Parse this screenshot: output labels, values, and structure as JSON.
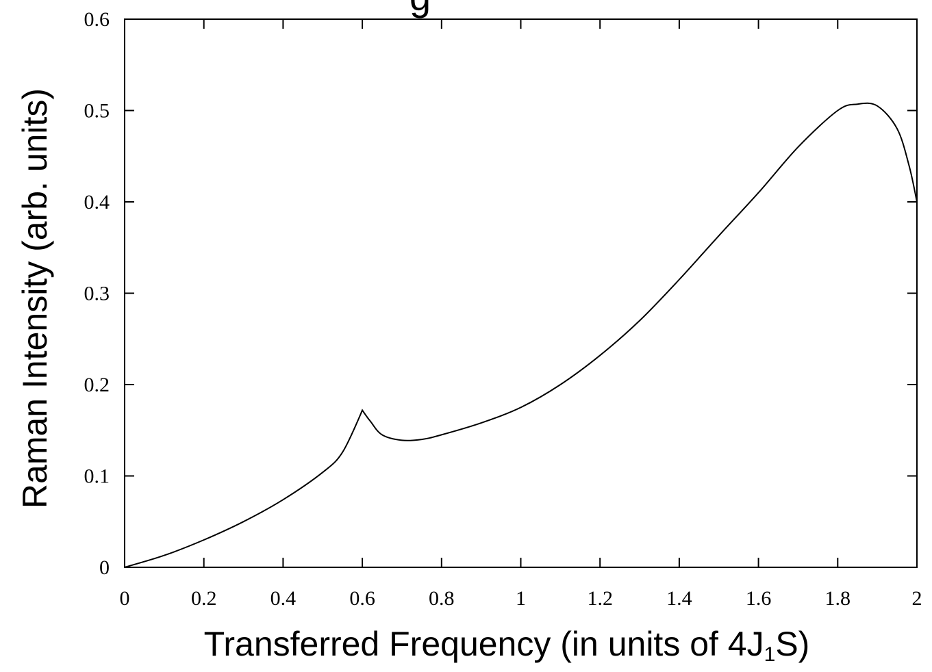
{
  "chart_data": {
    "type": "line",
    "title_fragment": "g",
    "xlabel_main": "Transferred Frequency (in units of 4J",
    "xlabel_sub": "1",
    "xlabel_tail": "S)",
    "ylabel": "Raman Intensity (arb. units)",
    "xlim": [
      0,
      2
    ],
    "ylim": [
      0,
      0.6
    ],
    "xticks": [
      "0",
      "0.2",
      "0.4",
      "0.6",
      "0.8",
      "1",
      "1.2",
      "1.4",
      "1.6",
      "1.8",
      "2"
    ],
    "yticks": [
      "0",
      "0.1",
      "0.2",
      "0.3",
      "0.4",
      "0.5",
      "0.6"
    ],
    "grid": false,
    "series": [
      {
        "x": [
          0,
          0.1,
          0.2,
          0.3,
          0.4,
          0.5,
          0.55,
          0.6,
          0.62,
          0.65,
          0.7,
          0.75,
          0.8,
          0.9,
          1.0,
          1.1,
          1.2,
          1.3,
          1.4,
          1.5,
          1.6,
          1.7,
          1.8,
          1.85,
          1.9,
          1.95,
          1.98,
          2.0
        ],
        "y": [
          0,
          0.013,
          0.03,
          0.05,
          0.074,
          0.104,
          0.126,
          0.172,
          0.16,
          0.145,
          0.139,
          0.14,
          0.145,
          0.158,
          0.175,
          0.2,
          0.232,
          0.27,
          0.315,
          0.363,
          0.41,
          0.46,
          0.5,
          0.507,
          0.505,
          0.48,
          0.44,
          0.4
        ]
      }
    ]
  }
}
